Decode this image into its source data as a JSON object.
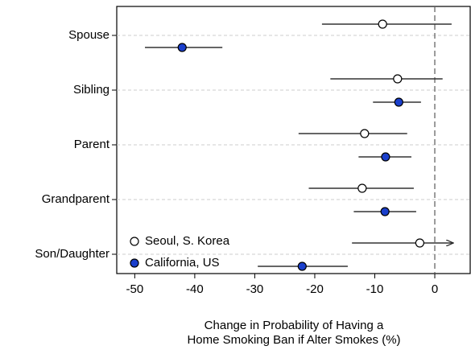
{
  "chart_data": {
    "type": "dot_whisker",
    "categories": [
      "Spouse",
      "Sibling",
      "Parent",
      "Grandparent",
      "Son/Daughter"
    ],
    "series": [
      {
        "name": "Seoul, S. Korea",
        "color": "#ffffff",
        "values": [
          -8.7,
          -6.2,
          -11.7,
          -12.1,
          -2.5
        ],
        "lower": [
          -18.8,
          -17.4,
          -22.7,
          -21.0,
          -13.8
        ],
        "upper": [
          2.8,
          1.3,
          -4.6,
          -3.5,
          3.1
        ],
        "upper_arrow": [
          false,
          false,
          false,
          false,
          true
        ]
      },
      {
        "name": "California, US",
        "color": "#1a3fcc",
        "values": [
          -42.1,
          -6.0,
          -8.2,
          -8.3,
          -22.1
        ],
        "lower": [
          -48.3,
          -10.3,
          -12.7,
          -13.5,
          -29.5
        ],
        "upper": [
          -35.4,
          -2.3,
          -3.9,
          -3.1,
          -14.5
        ],
        "upper_arrow": [
          false,
          false,
          false,
          false,
          false
        ]
      }
    ],
    "xlabel": [
      "Change in Probability of Having a",
      "Home Smoking Ban if Alter Smokes (%)"
    ],
    "xlim": [
      -53,
      5.9
    ],
    "xticks": [
      -50,
      -40,
      -30,
      -20,
      -10,
      0
    ],
    "reference_line": 0,
    "grid": true,
    "legend": "lower left"
  }
}
